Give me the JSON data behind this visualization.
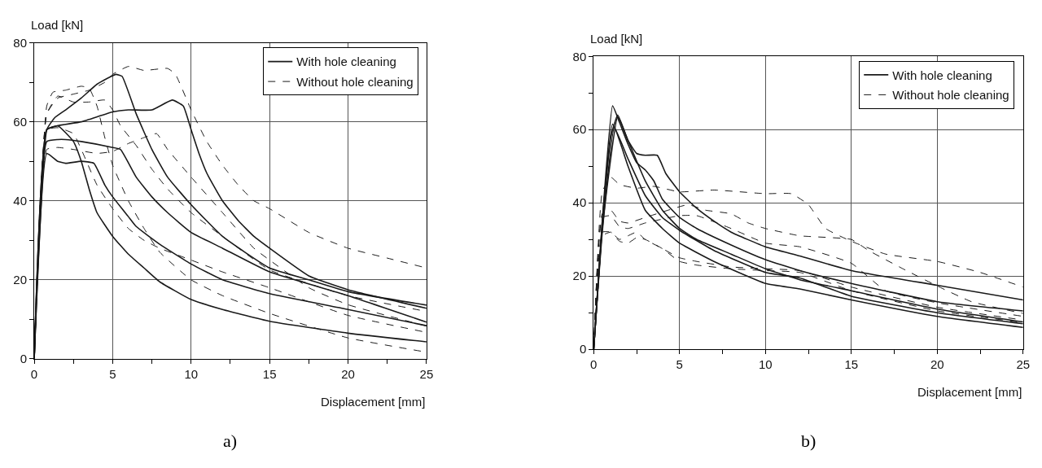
{
  "chart_data": [
    {
      "type": "line",
      "xlabel": "Displacement [mm]",
      "ylabel": "Load [kN]",
      "annotations": [
        "a)"
      ],
      "xlim": [
        0,
        25
      ],
      "ylim": [
        0,
        80
      ],
      "xticks": [
        0,
        {
          "value": 2.5,
          "label": null
        },
        5,
        {
          "value": 7.5,
          "label": null
        },
        10,
        {
          "value": 12.5,
          "label": null
        },
        15,
        {
          "value": 17.5,
          "label": null
        },
        20,
        {
          "value": 22.5,
          "label": null
        },
        25
      ],
      "yticks": [
        0,
        {
          "value": 10,
          "label": null
        },
        20,
        {
          "value": 30,
          "label": null
        },
        40,
        {
          "value": 50,
          "label": null
        },
        60,
        {
          "value": 70,
          "label": null
        },
        80
      ],
      "grid": true,
      "legend": "top right",
      "series": [
        {
          "name": "With hole cleaning",
          "color": "#1a1a1a",
          "line_style": "solid",
          "x": [
            0,
            0.8,
            1.3,
            2,
            3,
            4,
            5.2,
            5.6,
            6.5,
            7.5,
            8.5,
            10,
            12,
            15,
            17.5,
            20,
            25
          ],
          "values": [
            0,
            58,
            61,
            63,
            66,
            69.5,
            72,
            71.5,
            62,
            53,
            46,
            39,
            31,
            23,
            20,
            17,
            13.6
          ]
        },
        {
          "color": "#1a1a1a",
          "line_style": "solid",
          "x": [
            0,
            0.8,
            1.5,
            3,
            5,
            6,
            7.5,
            8.8,
            9.5,
            10,
            10.5,
            11,
            12,
            13,
            14,
            15,
            17.5,
            20,
            25
          ],
          "values": [
            0,
            58,
            59,
            60,
            62.5,
            63,
            63,
            65.5,
            64,
            58,
            52,
            47,
            40,
            35,
            31,
            28,
            21,
            17.5,
            12.8
          ]
        },
        {
          "color": "#1a1a1a",
          "line_style": "solid",
          "x": [
            0,
            0.8,
            1.5,
            2.5,
            3,
            3.5,
            4,
            5,
            6,
            7,
            8,
            10,
            12,
            15,
            20,
            25
          ],
          "values": [
            0,
            58,
            59,
            55,
            50,
            43,
            37,
            31,
            26.5,
            23,
            19.5,
            15,
            12.5,
            9.5,
            6.5,
            4.3
          ]
        },
        {
          "color": "#1a1a1a",
          "line_style": "solid",
          "x": [
            0,
            0.8,
            1.5,
            2,
            3,
            5,
            5.5,
            6.5,
            7.5,
            8.5,
            10,
            12,
            15,
            20,
            25
          ],
          "values": [
            0,
            55,
            55.5,
            55.5,
            55,
            53.5,
            53,
            46,
            41,
            37,
            32,
            28,
            22,
            16,
            9.3
          ]
        },
        {
          "color": "#1a1a1a",
          "line_style": "solid",
          "x": [
            0,
            0.8,
            1.5,
            2,
            3,
            3.8,
            4.5,
            5,
            6,
            6.5,
            8,
            10,
            12,
            15,
            20,
            25
          ],
          "values": [
            0,
            52,
            50,
            49.5,
            50,
            49.5,
            44,
            41,
            36,
            33.5,
            29,
            24,
            20,
            16.5,
            12.5,
            8.4
          ]
        },
        {
          "name": "Without hole cleaning",
          "color": "#1a1a1a",
          "line_style": "dashed",
          "x": [
            0,
            0.8,
            1.5,
            2.5,
            3.5,
            4.5,
            5,
            6,
            7,
            8.5,
            9,
            10,
            11,
            12,
            13,
            14,
            15,
            17.5,
            20,
            22.5,
            25
          ],
          "values": [
            0,
            62,
            66,
            67,
            68,
            70,
            72,
            74,
            73,
            73.5,
            72,
            63,
            55,
            49,
            44,
            40,
            38,
            32,
            28,
            25.5,
            23
          ]
        },
        {
          "color": "#1a1a1a",
          "line_style": "dashed",
          "x": [
            0,
            0.8,
            1.2,
            2,
            3,
            3.5,
            4,
            4.5,
            5,
            6,
            7,
            8,
            10,
            12,
            15,
            20,
            25
          ],
          "values": [
            0,
            64,
            67.5,
            68,
            69,
            68.5,
            64,
            56,
            49,
            40,
            33,
            27,
            20,
            16,
            11.5,
            5.3,
            1.7
          ]
        },
        {
          "color": "#1a1a1a",
          "line_style": "dashed",
          "x": [
            0,
            0.8,
            1.5,
            2.5,
            3.5,
            4.5,
            5,
            5.5,
            6.5,
            7.5,
            8.5,
            10,
            12,
            15,
            20,
            25
          ],
          "values": [
            0,
            62,
            66.5,
            65,
            65,
            65.5,
            63,
            59,
            54,
            48,
            43,
            37,
            31,
            22.5,
            16,
            12
          ]
        },
        {
          "color": "#1a1a1a",
          "line_style": "dashed",
          "x": [
            0,
            0.8,
            1.5,
            2.5,
            4,
            5,
            6,
            7,
            7.8,
            8.5,
            10,
            12,
            14,
            15,
            17.5,
            20,
            25
          ],
          "values": [
            0,
            53,
            53.5,
            53,
            52,
            52.5,
            54.5,
            56,
            57,
            53,
            46,
            37,
            28,
            25,
            18,
            13.7,
            8.3
          ]
        },
        {
          "color": "#1a1a1a",
          "line_style": "dashed",
          "x": [
            0,
            0.8,
            1.5,
            2.5,
            3,
            4,
            5,
            6,
            7,
            8,
            10,
            12,
            15,
            20,
            25
          ],
          "values": [
            0,
            58,
            58.5,
            57,
            53,
            44,
            38,
            33,
            30,
            28,
            25,
            22,
            18,
            11,
            6.7
          ]
        }
      ]
    },
    {
      "type": "line",
      "xlabel": "Displacement [mm]",
      "ylabel": "Load [kN]",
      "annotations": [
        "b)"
      ],
      "xlim": [
        0,
        25
      ],
      "ylim": [
        0,
        80
      ],
      "xticks": [
        0,
        {
          "value": 2.5,
          "label": null
        },
        5,
        {
          "value": 7.5,
          "label": null
        },
        10,
        {
          "value": 12.5,
          "label": null
        },
        15,
        {
          "value": 17.5,
          "label": null
        },
        20,
        {
          "value": 22.5,
          "label": null
        },
        25
      ],
      "yticks": [
        0,
        {
          "value": 10,
          "label": null
        },
        20,
        {
          "value": 30,
          "label": null
        },
        40,
        {
          "value": 50,
          "label": null
        },
        60,
        {
          "value": 70,
          "label": null
        },
        80
      ],
      "grid": true,
      "legend": "top right",
      "series": [
        {
          "name": "With hole cleaning",
          "color": "#1a1a1a",
          "line_style": "solid",
          "x": [
            0,
            0.5,
            1,
            1.4,
            2,
            2.5,
            3,
            3.7,
            4.2,
            5,
            6,
            7,
            8,
            10,
            12,
            15,
            20,
            25
          ],
          "values": [
            0,
            35,
            58,
            64,
            57,
            53.5,
            53,
            53,
            48,
            43,
            38.5,
            35,
            32,
            28,
            25.5,
            21.5,
            17.5,
            13.5
          ]
        },
        {
          "color": "#1a1a1a",
          "line_style": "solid",
          "x": [
            0,
            0.5,
            1.1,
            1.5,
            2,
            2.5,
            3,
            3.5,
            4,
            5,
            6,
            8,
            10,
            12,
            15,
            20,
            25
          ],
          "values": [
            0,
            35,
            66.5,
            62,
            56,
            51,
            49,
            46,
            41,
            36,
            33,
            28.5,
            24.5,
            21.5,
            18,
            13,
            10.5
          ]
        },
        {
          "color": "#1a1a1a",
          "line_style": "solid",
          "x": [
            0,
            0.5,
            1.4,
            2,
            3,
            4,
            5,
            6,
            8,
            10,
            12,
            15,
            20,
            25
          ],
          "values": [
            0,
            33,
            63.5,
            57,
            46,
            38,
            33,
            30,
            26,
            22,
            19,
            16,
            11,
            7.5
          ]
        },
        {
          "color": "#1a1a1a",
          "line_style": "solid",
          "x": [
            0,
            0.5,
            1.1,
            2,
            3,
            4,
            5,
            7,
            10,
            12,
            15,
            20,
            25
          ],
          "values": [
            0,
            34,
            61.5,
            52,
            42,
            36,
            32.5,
            27,
            21,
            19.5,
            14.5,
            10,
            7
          ]
        },
        {
          "color": "#1a1a1a",
          "line_style": "solid",
          "x": [
            0,
            0.5,
            1.2,
            2,
            3,
            4,
            5,
            7,
            10,
            12,
            15,
            20,
            25
          ],
          "values": [
            0,
            32,
            60.5,
            50,
            38,
            33,
            29,
            24,
            18,
            16.5,
            13.5,
            9,
            6
          ]
        },
        {
          "name": "Without hole cleaning",
          "color": "#1a1a1a",
          "line_style": "dashed",
          "x": [
            0,
            0.5,
            1,
            1.5,
            2.5,
            3.5,
            5,
            7,
            10,
            11.5,
            12.5,
            13.5,
            15,
            17,
            20,
            22.5,
            25
          ],
          "values": [
            0,
            43,
            47,
            45,
            44,
            44.5,
            43,
            43.5,
            42.5,
            42.5,
            39.5,
            33,
            29.5,
            26,
            24,
            21,
            17
          ]
        },
        {
          "color": "#1a1a1a",
          "line_style": "dashed",
          "x": [
            0,
            0.5,
            1,
            1.5,
            2,
            3,
            4,
            5.5,
            6.5,
            8,
            9,
            10,
            12,
            15,
            16,
            18,
            20,
            22,
            25
          ],
          "values": [
            0,
            37,
            38,
            35,
            34.5,
            36,
            37.5,
            39.5,
            38,
            37,
            34.5,
            33,
            31,
            30,
            27,
            22,
            17.3,
            13,
            9.8
          ]
        },
        {
          "color": "#1a1a1a",
          "line_style": "dashed",
          "x": [
            0,
            0.5,
            1,
            1.5,
            2,
            3,
            5,
            6,
            8,
            10,
            12,
            15,
            17,
            20,
            25
          ],
          "values": [
            0,
            36,
            36.5,
            33.5,
            33,
            34.5,
            36.5,
            36.5,
            33,
            29,
            28,
            23.5,
            16,
            12.7,
            9
          ]
        },
        {
          "color": "#1a1a1a",
          "line_style": "dashed",
          "x": [
            0,
            0.5,
            1,
            1.5,
            2,
            2.5,
            3,
            4,
            5,
            6,
            8,
            10,
            12,
            15,
            20,
            25
          ],
          "values": [
            0,
            32,
            32,
            30,
            31,
            32,
            30,
            27.5,
            25,
            24,
            22.5,
            22,
            21.5,
            17,
            11.5,
            8
          ]
        },
        {
          "color": "#1a1a1a",
          "line_style": "dashed",
          "x": [
            0,
            0.5,
            1,
            1.5,
            2,
            2.5,
            3,
            4,
            5,
            6,
            8,
            10,
            12,
            15,
            20,
            25
          ],
          "values": [
            0,
            31,
            32,
            29.5,
            29,
            30.5,
            30,
            27.5,
            24,
            23,
            22,
            21.5,
            21,
            16,
            10.5,
            7.3
          ]
        }
      ]
    }
  ]
}
